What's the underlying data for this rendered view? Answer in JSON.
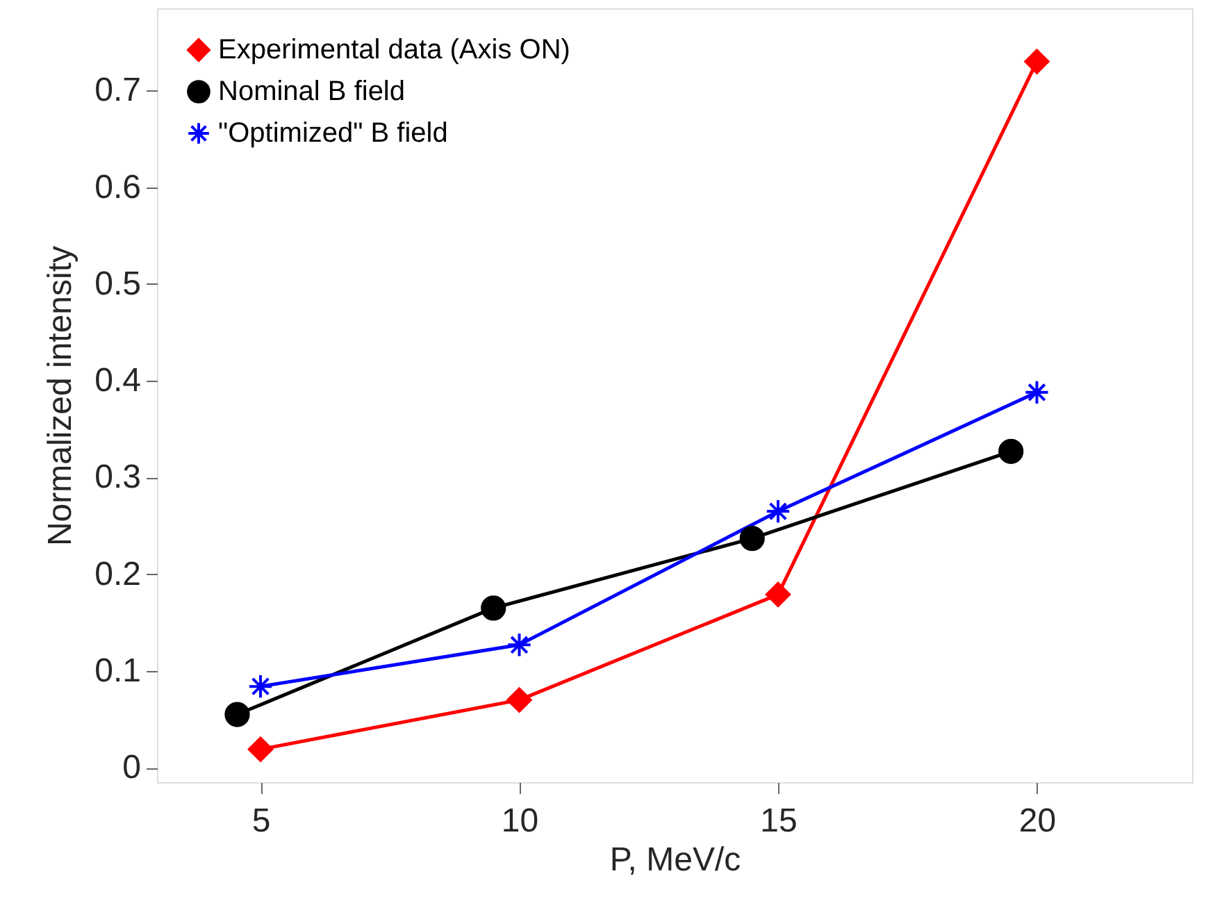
{
  "chart_data": {
    "type": "line",
    "xlabel": "P, MeV/c",
    "ylabel": "Normalized intensity",
    "xlim": [
      3,
      23
    ],
    "xticks": [
      5,
      10,
      15,
      20
    ],
    "ylim": [
      -0.015,
      0.785
    ],
    "yticks": [
      0,
      0.1,
      0.2,
      0.3,
      0.4,
      0.5,
      0.6,
      0.7
    ],
    "grid": false,
    "legend": "top left",
    "line_style": "solid",
    "series": [
      {
        "name": "Experimental data (Axis ON)",
        "color": "#ff0000",
        "marker": "diamond",
        "x": [
          5,
          10,
          15,
          20
        ],
        "values": [
          0.019,
          0.07,
          0.179,
          0.73
        ]
      },
      {
        "name": "Nominal B field",
        "color": "#000000",
        "marker": "circle",
        "x": [
          4.55,
          9.5,
          14.5,
          19.5
        ],
        "values": [
          0.055,
          0.165,
          0.237,
          0.327
        ]
      },
      {
        "name": "\"Optimized\" B field",
        "color": "#0000ff",
        "marker": "cross",
        "x": [
          5,
          10,
          15,
          20
        ],
        "values": [
          0.084,
          0.127,
          0.265,
          0.388
        ]
      }
    ]
  }
}
